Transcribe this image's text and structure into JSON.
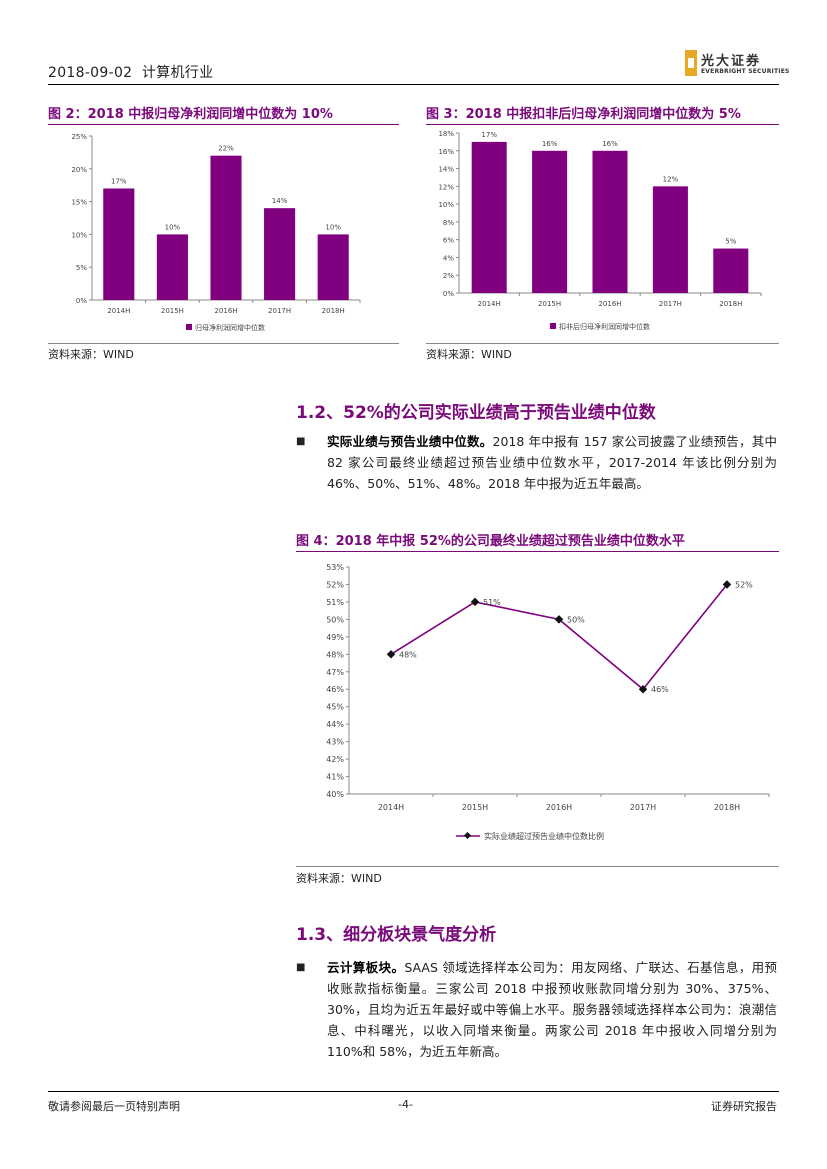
{
  "header": {
    "date": "2018-09-02",
    "industry": "计算机行业",
    "logo_cn": "光大证券",
    "logo_en": "EVERBRIGHT SECURITIES"
  },
  "fig2": {
    "title": "图 2：2018 中报归母净利润同增中位数为 10%",
    "source": "资料来源：WIND",
    "chart_data": {
      "type": "bar",
      "categories": [
        "2014H",
        "2015H",
        "2016H",
        "2017H",
        "2018H"
      ],
      "values": [
        17,
        10,
        22,
        14,
        10
      ],
      "data_labels": [
        "17%",
        "10%",
        "22%",
        "14%",
        "10%"
      ],
      "yticks": [
        "0%",
        "5%",
        "10%",
        "15%",
        "20%",
        "25%"
      ],
      "ylim": [
        0,
        25
      ],
      "legend": "归母净利润同增中位数",
      "color": "#800080"
    }
  },
  "fig3": {
    "title": "图 3：2018 中报扣非后归母净利润同增中位数为 5%",
    "source": "资料来源：WIND",
    "chart_data": {
      "type": "bar",
      "categories": [
        "2014H",
        "2015H",
        "2016H",
        "2017H",
        "2018H"
      ],
      "values": [
        17,
        16,
        16,
        12,
        5
      ],
      "data_labels": [
        "17%",
        "16%",
        "16%",
        "12%",
        "5%"
      ],
      "yticks": [
        "0%",
        "2%",
        "4%",
        "6%",
        "8%",
        "10%",
        "12%",
        "14%",
        "16%",
        "18%"
      ],
      "ylim": [
        0,
        18
      ],
      "legend": "扣非后归母净利润同增中位数",
      "color": "#800080"
    }
  },
  "sec12": {
    "heading": "1.2、52%的公司实际业绩高于预告业绩中位数",
    "bullet": "■",
    "lead": "实际业绩与预告业绩中位数。",
    "text": "2018 年中报有 157 家公司披露了业绩预告，其中 82 家公司最终业绩超过预告业绩中位数水平，2017-2014 年该比例分别为 46%、50%、51%、48%。2018 年中报为近五年最高。"
  },
  "fig4": {
    "title": "图 4：2018 年中报 52%的公司最终业绩超过预告业绩中位数水平",
    "source": "资料来源：WIND",
    "chart_data": {
      "type": "line",
      "categories": [
        "2014H",
        "2015H",
        "2016H",
        "2017H",
        "2018H"
      ],
      "values": [
        48,
        51,
        50,
        46,
        52
      ],
      "data_labels": [
        "48%",
        "51%",
        "50%",
        "46%",
        "52%"
      ],
      "yticks": [
        "40%",
        "41%",
        "42%",
        "43%",
        "44%",
        "45%",
        "46%",
        "47%",
        "48%",
        "49%",
        "50%",
        "51%",
        "52%",
        "53%"
      ],
      "ylim": [
        40,
        53
      ],
      "legend": "实际业绩超过预告业绩中位数比例",
      "color": "#800080"
    }
  },
  "sec13": {
    "heading": "1.3、细分板块景气度分析",
    "bullet": "■",
    "lead": "云计算板块。",
    "text": "SAAS 领域选择样本公司为：用友网络、广联达、石基信息，用预收账款指标衡量。三家公司 2018 中报预收账款同增分别为 30%、375%、30%，且均为近五年最好或中等偏上水平。服务器领域选择样本公司为：浪潮信息、中科曙光，以收入同增来衡量。两家公司 2018 年中报收入同增分别为 110%和 58%，为近五年新高。"
  },
  "footer": {
    "left": "敬请参阅最后一页特别声明",
    "page": "-4-",
    "right": "证券研究报告"
  }
}
